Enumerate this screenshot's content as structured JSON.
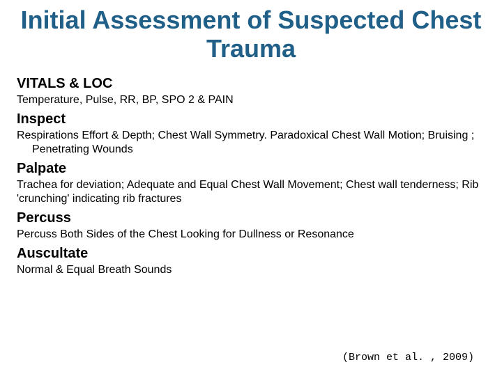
{
  "title": "Initial Assessment of Suspected Chest Trauma",
  "title_color": "#205f87",
  "title_fontsize": 36,
  "heading_fontsize": 20,
  "body_fontsize": 16,
  "background_color": "#ffffff",
  "sections": [
    {
      "heading": "VITALS & LOC",
      "text": "Temperature, Pulse, RR, BP, SPO 2 & PAIN",
      "indent": false
    },
    {
      "heading": "Inspect",
      "text": "Respirations Effort & Depth;  Chest Wall Symmetry. Paradoxical Chest Wall Motion; Bruising ; Penetrating Wounds",
      "indent": true
    },
    {
      "heading": "Palpate",
      "text": "Trachea for deviation; Adequate and Equal Chest Wall Movement; Chest wall tenderness; Rib 'crunching' indicating rib fractures",
      "indent": false
    },
    {
      "heading": "Percuss",
      "text": "Percuss Both Sides of the Chest Looking for Dullness or Resonance",
      "indent": false
    },
    {
      "heading": "Auscultate",
      "text": "Normal & Equal Breath Sounds",
      "indent": false
    }
  ],
  "citation": "(Brown et al. , 2009)"
}
